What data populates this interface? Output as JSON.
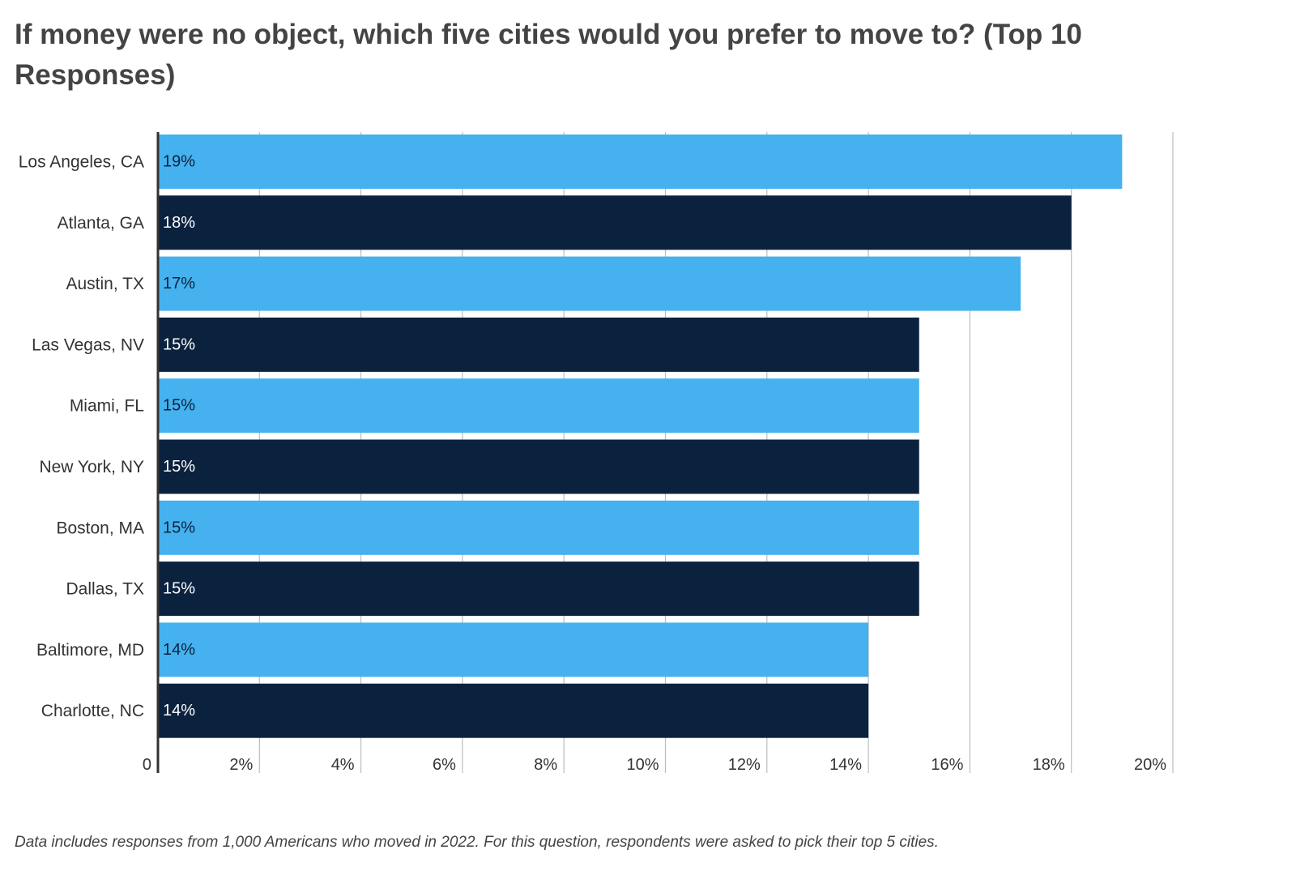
{
  "page": {
    "title": "If money were no object, which five cities would you prefer to move to? (Top 10 Responses)",
    "footnote": "Data includes responses from 1,000 Americans who moved in 2022. For this question, respondents were asked to pick their top 5 cities."
  },
  "colors": {
    "light_bar": "#45b1ee",
    "dark_bar": "#0b223f",
    "grid": "#bdbdbd",
    "axis": "#333333",
    "label_on_light": "#0b223f",
    "label_on_dark": "#ffffff"
  },
  "chart_data": {
    "type": "bar",
    "orientation": "horizontal",
    "title": "If money were no object, which five cities would you prefer to move to? (Top 10 Responses)",
    "categories": [
      "Los Angeles, CA",
      "Atlanta, GA",
      "Austin, TX",
      "Las Vegas, NV",
      "Miami, FL",
      "New York, NY",
      "Boston, MA",
      "Dallas, TX",
      "Baltimore, MD",
      "Charlotte, NC"
    ],
    "values": [
      19,
      18,
      17,
      15,
      15,
      15,
      15,
      15,
      14,
      14
    ],
    "value_labels": [
      "19%",
      "18%",
      "17%",
      "15%",
      "15%",
      "15%",
      "15%",
      "15%",
      "14%",
      "14%"
    ],
    "bar_colors": [
      "#45b1ee",
      "#0b223f",
      "#45b1ee",
      "#0b223f",
      "#45b1ee",
      "#0b223f",
      "#45b1ee",
      "#0b223f",
      "#45b1ee",
      "#0b223f"
    ],
    "xlim": [
      0,
      20
    ],
    "xticks": [
      0,
      2,
      4,
      6,
      8,
      10,
      12,
      14,
      16,
      18,
      20
    ],
    "xtick_labels": [
      "0",
      "2%",
      "4%",
      "6%",
      "8%",
      "10%",
      "12%",
      "14%",
      "16%",
      "18%",
      "20%"
    ],
    "xlabel": "",
    "ylabel": "",
    "grid": true,
    "legend": "none"
  }
}
